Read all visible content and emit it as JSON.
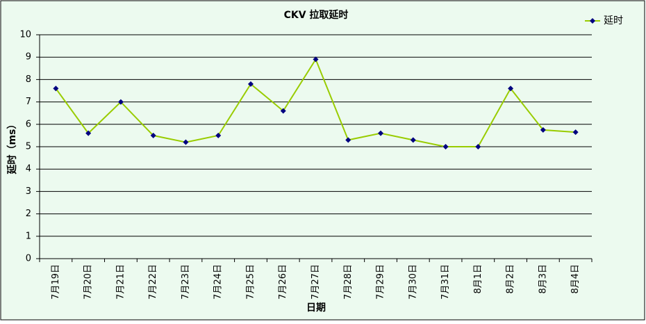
{
  "chart_data": {
    "type": "line",
    "title": "CKV 拉取延时",
    "x_label": "日期",
    "y_label": "延时（ms）",
    "categories": [
      "7月19日",
      "7月20日",
      "7月21日",
      "7月22日",
      "7月23日",
      "7月24日",
      "7月25日",
      "7月26日",
      "7月27日",
      "7月28日",
      "7月29日",
      "7月30日",
      "7月31日",
      "8月1日",
      "8月2日",
      "8月3日",
      "8月4日"
    ],
    "series": [
      {
        "name": "延时",
        "color": "#99cc00",
        "marker_color": "#000080",
        "values": [
          7.6,
          5.6,
          7.0,
          5.5,
          5.2,
          5.5,
          7.8,
          6.6,
          8.9,
          5.3,
          5.6,
          5.3,
          5.0,
          5.0,
          7.6,
          5.75,
          5.65
        ]
      }
    ],
    "ylim": [
      0,
      10
    ],
    "yticks": [
      0,
      1,
      2,
      3,
      4,
      5,
      6,
      7,
      8,
      9,
      10
    ],
    "grid": true,
    "legend": "top-right"
  }
}
